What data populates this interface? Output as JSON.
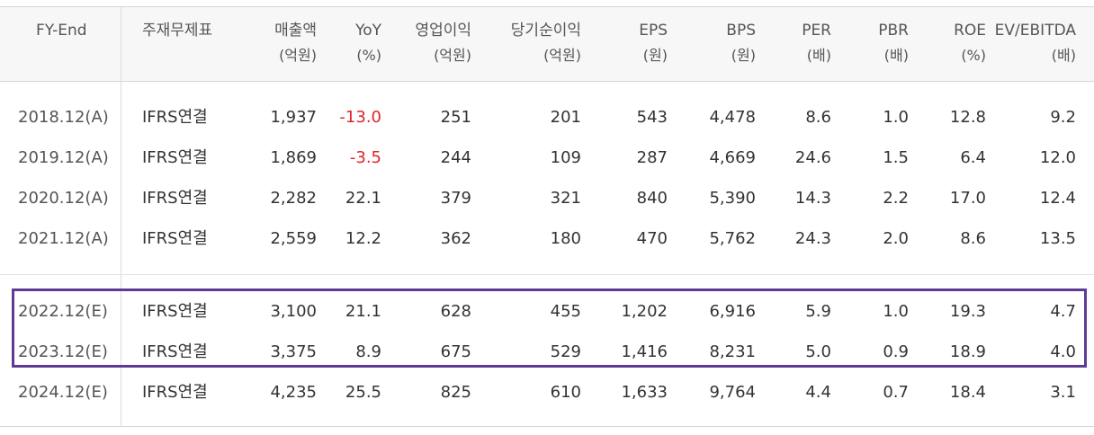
{
  "columns": [
    {
      "key": "fy",
      "line1": "FY-End",
      "line2": ""
    },
    {
      "key": "std",
      "line1": "주재무제표",
      "line2": ""
    },
    {
      "key": "sales",
      "line1": "매출액",
      "line2": "(억원)"
    },
    {
      "key": "yoy",
      "line1": "YoY",
      "line2": "(%)"
    },
    {
      "key": "op",
      "line1": "영업이익",
      "line2": "(억원)"
    },
    {
      "key": "net",
      "line1": "당기순이익",
      "line2": "(억원)"
    },
    {
      "key": "eps",
      "line1": "EPS",
      "line2": "(원)"
    },
    {
      "key": "bps",
      "line1": "BPS",
      "line2": "(원)"
    },
    {
      "key": "per",
      "line1": "PER",
      "line2": "(배)"
    },
    {
      "key": "pbr",
      "line1": "PBR",
      "line2": "(배)"
    },
    {
      "key": "roe",
      "line1": "ROE",
      "line2": "(%)"
    },
    {
      "key": "ev",
      "line1": "EV/EBITDA",
      "line2": "(배)"
    }
  ],
  "rows": [
    {
      "fy": "2018.12(A)",
      "std": "IFRS연결",
      "sales": "1,937",
      "yoy": "-13.0",
      "op": "251",
      "net": "201",
      "eps": "543",
      "bps": "4,478",
      "per": "8.6",
      "pbr": "1.0",
      "roe": "12.8",
      "ev": "9.2"
    },
    {
      "fy": "2019.12(A)",
      "std": "IFRS연결",
      "sales": "1,869",
      "yoy": "-3.5",
      "op": "244",
      "net": "109",
      "eps": "287",
      "bps": "4,669",
      "per": "24.6",
      "pbr": "1.5",
      "roe": "6.4",
      "ev": "12.0"
    },
    {
      "fy": "2020.12(A)",
      "std": "IFRS연결",
      "sales": "2,282",
      "yoy": "22.1",
      "op": "379",
      "net": "321",
      "eps": "840",
      "bps": "5,390",
      "per": "14.3",
      "pbr": "2.2",
      "roe": "17.0",
      "ev": "12.4"
    },
    {
      "fy": "2021.12(A)",
      "std": "IFRS연결",
      "sales": "2,559",
      "yoy": "12.2",
      "op": "362",
      "net": "180",
      "eps": "470",
      "bps": "5,762",
      "per": "24.3",
      "pbr": "2.0",
      "roe": "8.6",
      "ev": "13.5"
    },
    {
      "fy": "2022.12(E)",
      "std": "IFRS연결",
      "sales": "3,100",
      "yoy": "21.1",
      "op": "628",
      "net": "455",
      "eps": "1,202",
      "bps": "6,916",
      "per": "5.9",
      "pbr": "1.0",
      "roe": "19.3",
      "ev": "4.7"
    },
    {
      "fy": "2023.12(E)",
      "std": "IFRS연결",
      "sales": "3,375",
      "yoy": "8.9",
      "op": "675",
      "net": "529",
      "eps": "1,416",
      "bps": "8,231",
      "per": "5.0",
      "pbr": "0.9",
      "roe": "18.9",
      "ev": "4.0"
    },
    {
      "fy": "2024.12(E)",
      "std": "IFRS연결",
      "sales": "4,235",
      "yoy": "25.5",
      "op": "825",
      "net": "610",
      "eps": "1,633",
      "bps": "9,764",
      "per": "4.4",
      "pbr": "0.7",
      "roe": "18.4",
      "ev": "3.1"
    }
  ],
  "colors": {
    "negative": "#e0232b",
    "highlight_border": "#5e3b92",
    "header_bg": "#f7f7f7"
  }
}
